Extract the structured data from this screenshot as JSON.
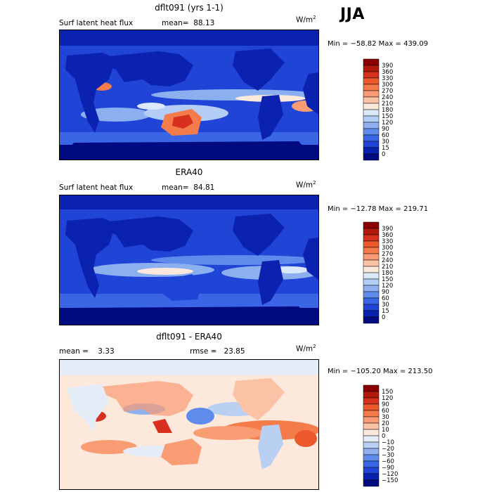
{
  "season": "JJA",
  "panels": [
    {
      "title": "dflt091 (yrs 1-1)",
      "variable": "Surf latent heat flux",
      "stat1": "mean=  88.13",
      "stat2": "",
      "units_base": "W/m",
      "units_exp": "2",
      "minmax": "Min = −58.82 Max = 439.09",
      "colorbar": {
        "labels": [
          "390",
          "360",
          "330",
          "300",
          "270",
          "240",
          "210",
          "180",
          "150",
          "120",
          "90",
          "60",
          "30",
          "15",
          "0"
        ],
        "colors": [
          "#8b0000",
          "#b01a0a",
          "#d7301f",
          "#ec5a2c",
          "#f47b4a",
          "#f99b73",
          "#fcc2a6",
          "#fde8dc",
          "#dbe7fb",
          "#b4cdf6",
          "#8caff0",
          "#5f8cec",
          "#3a66e6",
          "#1f44d6",
          "#0b21b0",
          "#010a80"
        ]
      }
    },
    {
      "title": "ERA40",
      "variable": "Surf latent heat flux",
      "stat1": "mean=  84.81",
      "stat2": "",
      "units_base": "W/m",
      "units_exp": "2",
      "minmax": "Min = −12.78 Max = 219.71",
      "colorbar": {
        "labels": [
          "390",
          "360",
          "330",
          "300",
          "270",
          "240",
          "210",
          "180",
          "150",
          "120",
          "90",
          "60",
          "30",
          "15",
          "0"
        ],
        "colors": [
          "#8b0000",
          "#b01a0a",
          "#d7301f",
          "#ec5a2c",
          "#f47b4a",
          "#f99b73",
          "#fcc2a6",
          "#fde8dc",
          "#dbe7fb",
          "#b4cdf6",
          "#8caff0",
          "#5f8cec",
          "#3a66e6",
          "#1f44d6",
          "#0b21b0",
          "#010a80"
        ]
      }
    },
    {
      "title": "dflt091 - ERA40",
      "variable": "",
      "stat1": "mean =    3.33",
      "stat2": "rmse =   23.85",
      "units_base": "W/m",
      "units_exp": "2",
      "minmax": "Min = −105.20 Max = 213.50",
      "colorbar": {
        "labels": [
          "150",
          "120",
          "90",
          "60",
          "30",
          "20",
          "10",
          "0",
          "−10",
          "−20",
          "−30",
          "−60",
          "−90",
          "−120",
          "−150"
        ],
        "colors": [
          "#8b0000",
          "#b01a0a",
          "#d7301f",
          "#ec5a2c",
          "#f47b4a",
          "#f99b73",
          "#fcc2a6",
          "#fde8dc",
          "#e4ecf8",
          "#b9d0f3",
          "#8fb0ee",
          "#5f8cec",
          "#3a66e6",
          "#1f44d6",
          "#0b21b0",
          "#010a80"
        ]
      }
    }
  ],
  "chart_data": [
    {
      "type": "heatmap",
      "title": "dflt091 (yrs 1-1)",
      "subtitle": "Surf latent heat flux",
      "units": "W/m2",
      "mean": 88.13,
      "min": -58.82,
      "max": 439.09,
      "contour_levels": [
        0,
        15,
        30,
        60,
        90,
        120,
        150,
        180,
        210,
        240,
        270,
        300,
        330,
        360,
        390
      ]
    },
    {
      "type": "heatmap",
      "title": "ERA40",
      "subtitle": "Surf latent heat flux",
      "units": "W/m2",
      "mean": 84.81,
      "min": -12.78,
      "max": 219.71,
      "contour_levels": [
        0,
        15,
        30,
        60,
        90,
        120,
        150,
        180,
        210,
        240,
        270,
        300,
        330,
        360,
        390
      ]
    },
    {
      "type": "heatmap",
      "title": "dflt091 - ERA40",
      "units": "W/m2",
      "mean": 3.33,
      "rmse": 23.85,
      "min": -105.2,
      "max": 213.5,
      "contour_levels": [
        -150,
        -120,
        -90,
        -60,
        -30,
        -20,
        -10,
        0,
        10,
        20,
        30,
        60,
        90,
        120,
        150
      ]
    }
  ]
}
